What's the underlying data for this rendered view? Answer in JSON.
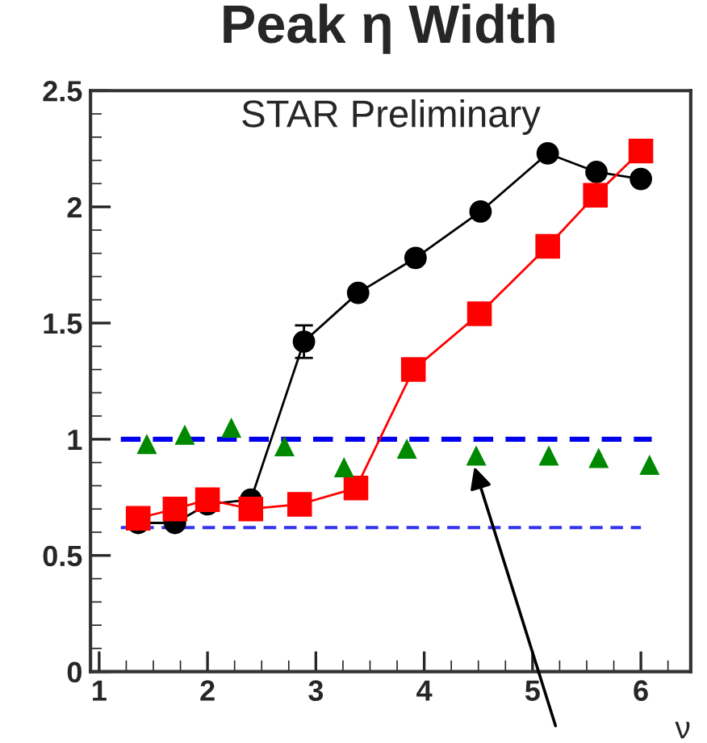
{
  "chart_data": {
    "type": "line",
    "title": "Peak η Width",
    "xlabel": "ν",
    "annotations": [
      "STAR Preliminary"
    ],
    "xlim": [
      0.92,
      6.46
    ],
    "xticks": [
      1,
      2,
      3,
      4,
      5,
      6
    ],
    "ylim": [
      0,
      2.5
    ],
    "yticks": [
      0,
      0.5,
      1,
      1.5,
      2,
      2.5
    ],
    "grid": false,
    "legend": false,
    "series": [
      {
        "color": "#0000ee",
        "line_style": "dashed",
        "marker": "none",
        "x": [
          1.2,
          6.1
        ],
        "values": [
          1.0,
          1.0
        ]
      },
      {
        "color": "#3333ee",
        "line_style": "dashed",
        "marker": "none",
        "x": [
          1.2,
          6.0
        ],
        "values": [
          0.62,
          0.62
        ]
      },
      {
        "color": "#000000",
        "marker": "circle",
        "x": [
          1.36,
          1.7,
          2.0,
          2.4,
          2.89,
          3.39,
          3.92,
          4.52,
          5.14,
          5.59,
          6.0
        ],
        "values": [
          0.64,
          0.64,
          0.72,
          0.74,
          1.42,
          1.63,
          1.78,
          1.98,
          2.23,
          2.15,
          2.12
        ],
        "errors": [
          null,
          null,
          null,
          null,
          0.07,
          null,
          null,
          null,
          null,
          null,
          null
        ]
      },
      {
        "color": "#ff0000",
        "marker": "square",
        "x": [
          1.36,
          1.7,
          2.0,
          2.4,
          2.85,
          3.37,
          3.9,
          4.51,
          5.14,
          5.58,
          6.0
        ],
        "values": [
          0.66,
          0.7,
          0.74,
          0.7,
          0.72,
          0.79,
          1.3,
          1.54,
          1.83,
          2.05,
          2.24
        ]
      },
      {
        "color": "#008800",
        "type": "scatter",
        "marker": "triangle",
        "x": [
          1.44,
          1.79,
          2.22,
          2.71,
          3.26,
          3.84,
          4.48,
          5.15,
          5.61,
          6.08
        ],
        "values": [
          0.98,
          1.02,
          1.05,
          0.97,
          0.88,
          0.96,
          0.93,
          0.93,
          0.92,
          0.89
        ]
      }
    ]
  }
}
